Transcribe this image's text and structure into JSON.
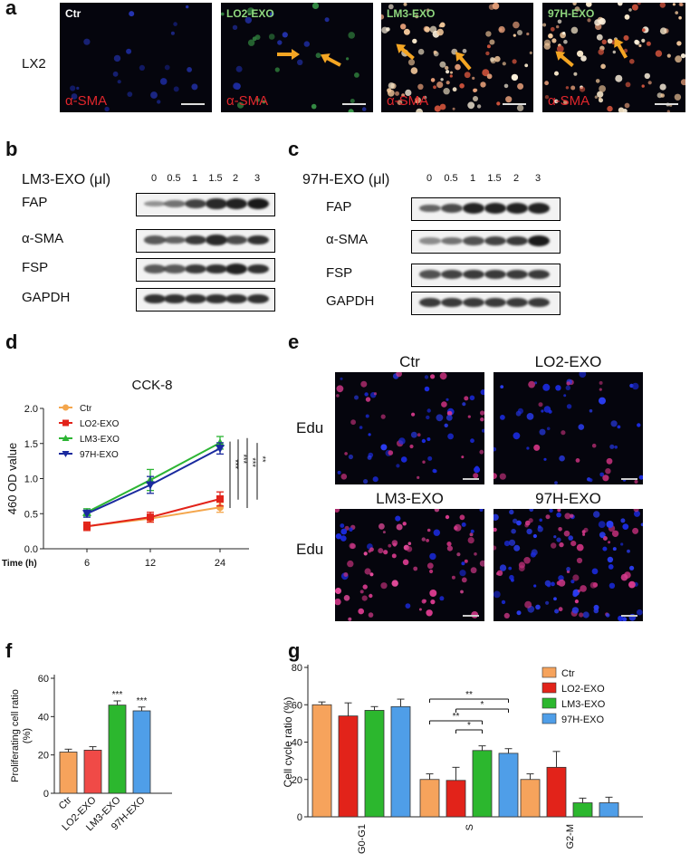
{
  "panel_letters": {
    "a": "a",
    "b": "b",
    "c": "c",
    "d": "d",
    "e": "e",
    "f": "f",
    "g": "g"
  },
  "panel_a": {
    "row_label": "LX2",
    "images": [
      {
        "title": "Ctr",
        "stain": "α-SMA"
      },
      {
        "title": "LO2-EXO",
        "stain": "α-SMA"
      },
      {
        "title": "LM3-EXO",
        "stain": "α-SMA"
      },
      {
        "title": "97H-EXO",
        "stain": "α-SMA"
      }
    ]
  },
  "panel_b": {
    "treatment": "LM3-EXO (μl)",
    "doses": [
      "0",
      "0.5",
      "1",
      "1.5",
      "2",
      "3"
    ],
    "proteins": [
      "FAP",
      "α-SMA",
      "FSP",
      "GAPDH"
    ],
    "intensity": [
      [
        0.25,
        0.45,
        0.75,
        0.9,
        0.95,
        1.0
      ],
      [
        0.6,
        0.55,
        0.8,
        0.9,
        0.7,
        0.85
      ],
      [
        0.6,
        0.6,
        0.8,
        0.85,
        0.95,
        0.85
      ],
      [
        0.85,
        0.85,
        0.85,
        0.85,
        0.85,
        0.85
      ]
    ]
  },
  "panel_c": {
    "treatment": "97H-EXO (μl)",
    "doses": [
      "0",
      "0.5",
      "1",
      "1.5",
      "2",
      "3"
    ],
    "proteins": [
      "FAP",
      "α-SMA",
      "FSP",
      "GAPDH"
    ],
    "intensity": [
      [
        0.55,
        0.7,
        0.95,
        0.95,
        0.95,
        0.95
      ],
      [
        0.3,
        0.45,
        0.65,
        0.75,
        0.8,
        1.0
      ],
      [
        0.65,
        0.75,
        0.8,
        0.8,
        0.8,
        0.8
      ],
      [
        0.8,
        0.8,
        0.8,
        0.8,
        0.8,
        0.8
      ]
    ]
  },
  "panel_e": {
    "images": [
      {
        "title": "Ctr",
        "row_label": "Edu"
      },
      {
        "title": "LO2-EXO",
        "row_label": ""
      },
      {
        "title": "LM3-EXO",
        "row_label": "Edu"
      },
      {
        "title": "97H-EXO",
        "row_label": ""
      }
    ]
  },
  "chart_data": [
    {
      "id": "d",
      "type": "line",
      "title": "CCK-8",
      "xlabel": "Time (h)",
      "ylabel": "460 OD value",
      "x": [
        "6",
        "12",
        "24"
      ],
      "ylim": [
        0,
        2.0
      ],
      "yticks": [
        "0.0",
        "0.5",
        "1.0",
        "1.5",
        "2.0"
      ],
      "series": [
        {
          "name": "Ctr",
          "color": "#f4a64c",
          "marker": "circle",
          "values": [
            0.32,
            0.43,
            0.59
          ],
          "err": [
            0.05,
            0.05,
            0.07
          ]
        },
        {
          "name": "LO2-EXO",
          "color": "#e2231a",
          "marker": "square",
          "values": [
            0.32,
            0.45,
            0.71
          ],
          "err": [
            0.06,
            0.07,
            0.1
          ]
        },
        {
          "name": "LM3-EXO",
          "color": "#2db534",
          "marker": "triangle",
          "values": [
            0.52,
            0.98,
            1.51
          ],
          "err": [
            0.05,
            0.15,
            0.09
          ]
        },
        {
          "name": "97H-EXO",
          "color": "#1a2a9e",
          "marker": "triangle-down",
          "values": [
            0.5,
            0.91,
            1.43
          ],
          "err": [
            0.05,
            0.12,
            0.08
          ]
        }
      ],
      "significance": [
        "***",
        "***",
        "***",
        "**"
      ]
    },
    {
      "id": "f",
      "type": "bar",
      "ylabel": "Proliferating cell ratio (%)",
      "ylabel_lines": [
        "Proliferating cell ratio",
        "(%)"
      ],
      "categories": [
        "Ctr",
        "LO2-EXO",
        "LM3-EXO",
        "97H-EXO"
      ],
      "values": [
        21.5,
        22.5,
        46,
        43
      ],
      "err": [
        1.5,
        1.8,
        2.2,
        2.0
      ],
      "colors": [
        "#f6a35c",
        "#f04a47",
        "#2cb72e",
        "#4f9ee8"
      ],
      "annotations": [
        "",
        "",
        "***",
        "***"
      ],
      "ylim": [
        0,
        60
      ],
      "yticks": [
        "0",
        "20",
        "40",
        "60"
      ]
    },
    {
      "id": "g",
      "type": "bar",
      "ylabel": "Cell cycle ratio (%)",
      "categories": [
        "G0-G1",
        "S",
        "G2-M"
      ],
      "ylim": [
        0,
        80
      ],
      "yticks": [
        "0",
        "20",
        "40",
        "60",
        "80"
      ],
      "legend_position": "top-right",
      "series": [
        {
          "name": "Ctr",
          "color": "#f6a35c",
          "values": [
            60,
            20,
            20
          ],
          "err": [
            1.5,
            3,
            3
          ]
        },
        {
          "name": "LO2-EXO",
          "color": "#e2231a",
          "values": [
            54,
            19.5,
            26.5
          ],
          "err": [
            7,
            7,
            8.5
          ]
        },
        {
          "name": "LM3-EXO",
          "color": "#2cb72e",
          "values": [
            57,
            35.5,
            7.5
          ],
          "err": [
            2,
            2.5,
            2.5
          ]
        },
        {
          "name": "97H-EXO",
          "color": "#4f9ee8",
          "values": [
            59,
            34,
            7.5
          ],
          "err": [
            4,
            2.5,
            3
          ]
        }
      ],
      "significance": [
        {
          "label": "**",
          "from": 0,
          "to": 3
        },
        {
          "label": "*",
          "from": 1,
          "to": 3
        },
        {
          "label": "**",
          "from": 0,
          "to": 2
        },
        {
          "label": "*",
          "from": 1,
          "to": 2
        }
      ]
    }
  ]
}
